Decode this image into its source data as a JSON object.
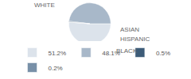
{
  "chart_data": {
    "type": "pie",
    "categories": [
      "WHITE",
      "BLACK",
      "ASIAN",
      "HISPANIC"
    ],
    "values": [
      51.2,
      48.1,
      0.5,
      0.2
    ],
    "value_labels": [
      "51.2%",
      "48.1%",
      "0.5%",
      "0.2%"
    ],
    "colors": [
      "#dce3eb",
      "#a8b8c9",
      "#3d5c78",
      "#7890a8"
    ],
    "legend": "bottom"
  }
}
